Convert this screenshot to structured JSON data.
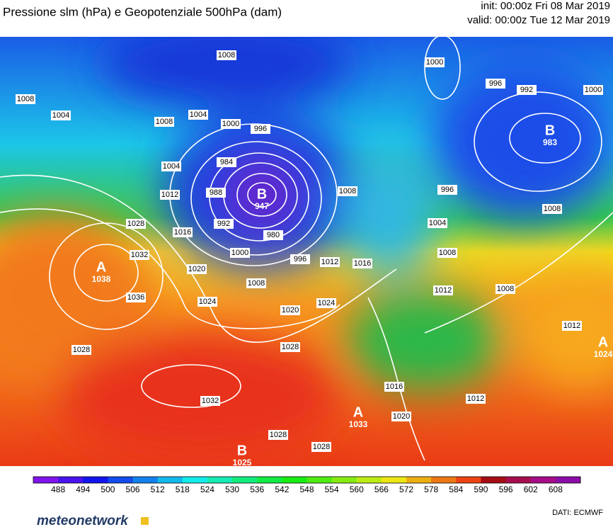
{
  "header": {
    "title": "Pressione slm (hPa) e Geopotenziale 500hPa (dam)",
    "init": "init: 00:00z Fri 08 Mar 2019",
    "valid": "valid: 00:00z Tue 12 Mar 2019"
  },
  "centers": [
    {
      "letter": "B",
      "value": "947"
    },
    {
      "letter": "B",
      "value": "983"
    },
    {
      "letter": "A",
      "value": "1038"
    },
    {
      "letter": "B",
      "value": "1025"
    },
    {
      "letter": "A",
      "value": "1033"
    },
    {
      "letter": "A",
      "value": "1024"
    }
  ],
  "isobar_labels": [
    "1008",
    "1008",
    "1004",
    "1008",
    "1004",
    "1000",
    "996",
    "984",
    "988",
    "992",
    "980",
    "1000",
    "1008",
    "996",
    "1012",
    "1016",
    "1020",
    "1024",
    "1028",
    "1028",
    "1032",
    "1036",
    "1028",
    "1032",
    "1028",
    "1028",
    "1020",
    "1016",
    "1012",
    "1008",
    "1008",
    "1008",
    "1004",
    "1012",
    "1016",
    "1020",
    "1024",
    "1000",
    "996",
    "992",
    "1000",
    "996",
    "1004",
    "1008",
    "1012",
    "1012"
  ],
  "colorbar": {
    "labels": [
      "488",
      "494",
      "500",
      "506",
      "512",
      "518",
      "524",
      "530",
      "536",
      "542",
      "548",
      "554",
      "560",
      "566",
      "572",
      "578",
      "584",
      "590",
      "596",
      "602",
      "608"
    ]
  },
  "footer": {
    "logo": "meteonetwork",
    "source": "DATI:  ECMWF"
  }
}
